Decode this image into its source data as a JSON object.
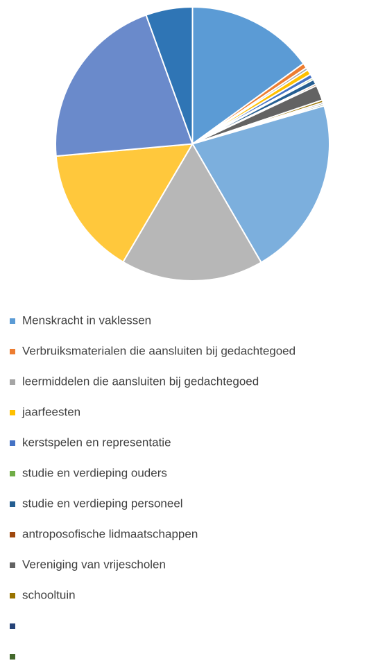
{
  "chart_data": {
    "type": "pie",
    "categories": [
      "Menskracht in vaklessen",
      "Verbruiksmaterialen die aansluiten bij gedachtegoed",
      "leermiddelen die aansluiten bij gedachtegoed",
      "jaarfeesten",
      "kerstspelen en representatie",
      "studie en verdieping ouders",
      "studie en verdieping personeel",
      "antroposofische lidmaatschappen",
      "Vereniging van vrijescholen",
      "schooltuin",
      null,
      null,
      null,
      null,
      null,
      null,
      null
    ],
    "values": [
      15,
      0.6,
      0.3,
      0.6,
      0.5,
      0.2,
      0.6,
      0.2,
      1.8,
      0.3,
      0.2,
      0.2,
      21.1,
      16.8,
      15.1,
      20.9,
      5.5
    ],
    "colors": [
      "#5B9BD5",
      "#ED7D31",
      "#A5A5A5",
      "#FFC000",
      "#4472C4",
      "#70AD47",
      "#255E91",
      "#9E480E",
      "#636363",
      "#997300",
      "#264478",
      "#43682B",
      "#7CAFDD",
      "#B7B7B7",
      "#FFC83C",
      "#6A8ACB",
      "#2F75B5"
    ],
    "legend": "bottom"
  }
}
